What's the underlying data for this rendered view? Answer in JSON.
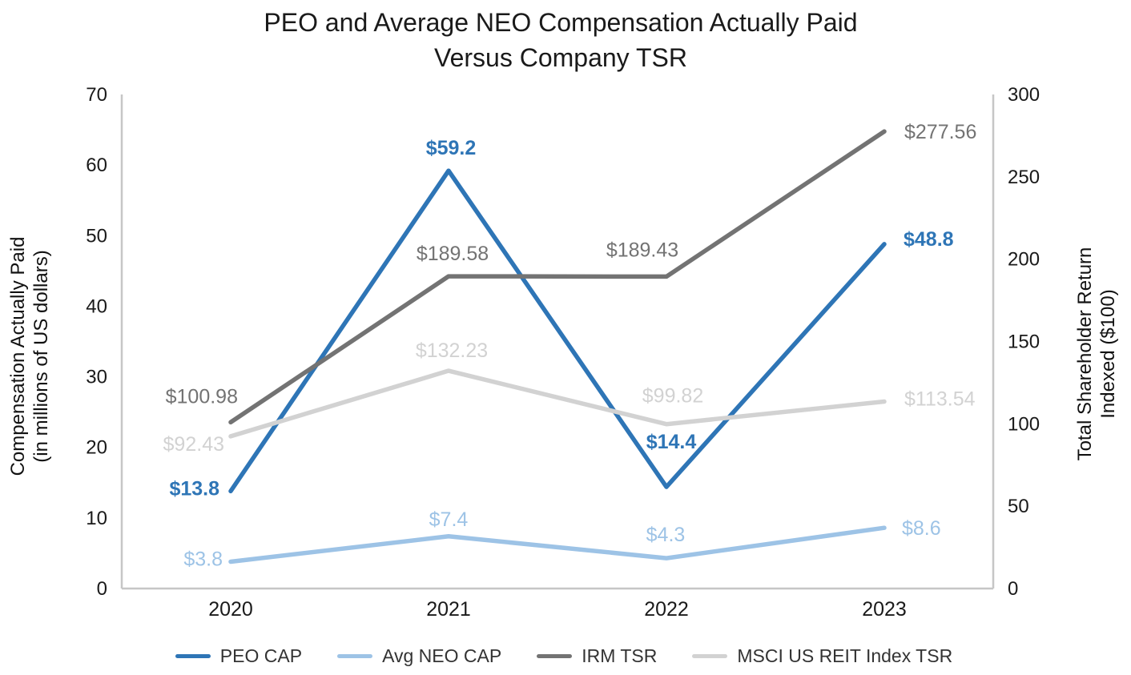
{
  "title": {
    "line1": "PEO and Average NEO Compensation Actually Paid",
    "line2": "Versus Company TSR"
  },
  "chart_data": {
    "type": "line",
    "categories": [
      "2020",
      "2021",
      "2022",
      "2023"
    ],
    "series": [
      {
        "name": "PEO CAP",
        "axis": "left",
        "color": "#2E75B6",
        "values": [
          13.8,
          59.2,
          14.4,
          48.8
        ],
        "labels": [
          "$13.8",
          "$59.2",
          "$14.4",
          "$48.8"
        ]
      },
      {
        "name": "Avg NEO CAP",
        "axis": "left",
        "color": "#9DC3E6",
        "values": [
          3.8,
          7.4,
          4.3,
          8.6
        ],
        "labels": [
          "$3.8",
          "$7.4",
          "$4.3",
          "$8.6"
        ]
      },
      {
        "name": "IRM TSR",
        "axis": "right",
        "color": "#737373",
        "values": [
          100.98,
          189.58,
          189.43,
          277.56
        ],
        "labels": [
          "$100.98",
          "$189.58",
          "$189.43",
          "$277.56"
        ]
      },
      {
        "name": "MSCI US REIT Index TSR",
        "axis": "right",
        "color": "#D2D2D2",
        "values": [
          92.43,
          132.23,
          99.82,
          113.54
        ],
        "labels": [
          "$92.43",
          "$132.23",
          "$99.82",
          "$113.54"
        ]
      }
    ],
    "left_axis": {
      "title_line1": "Compensation Actually Paid",
      "title_line2": "(in millions of US dollars)",
      "min": 0,
      "max": 70,
      "ticks": [
        0,
        10,
        20,
        30,
        40,
        50,
        60,
        70
      ]
    },
    "right_axis": {
      "title_line1": "Total Shareholder Return",
      "title_line2": "Indexed ($100)",
      "min": 0,
      "max": 300,
      "ticks": [
        0,
        50,
        100,
        150,
        200,
        250,
        300
      ]
    },
    "legend_position": "bottom",
    "grid": false,
    "axis_line_color": "#C6C6C6",
    "tick_label_color": "#1A1A1A"
  }
}
